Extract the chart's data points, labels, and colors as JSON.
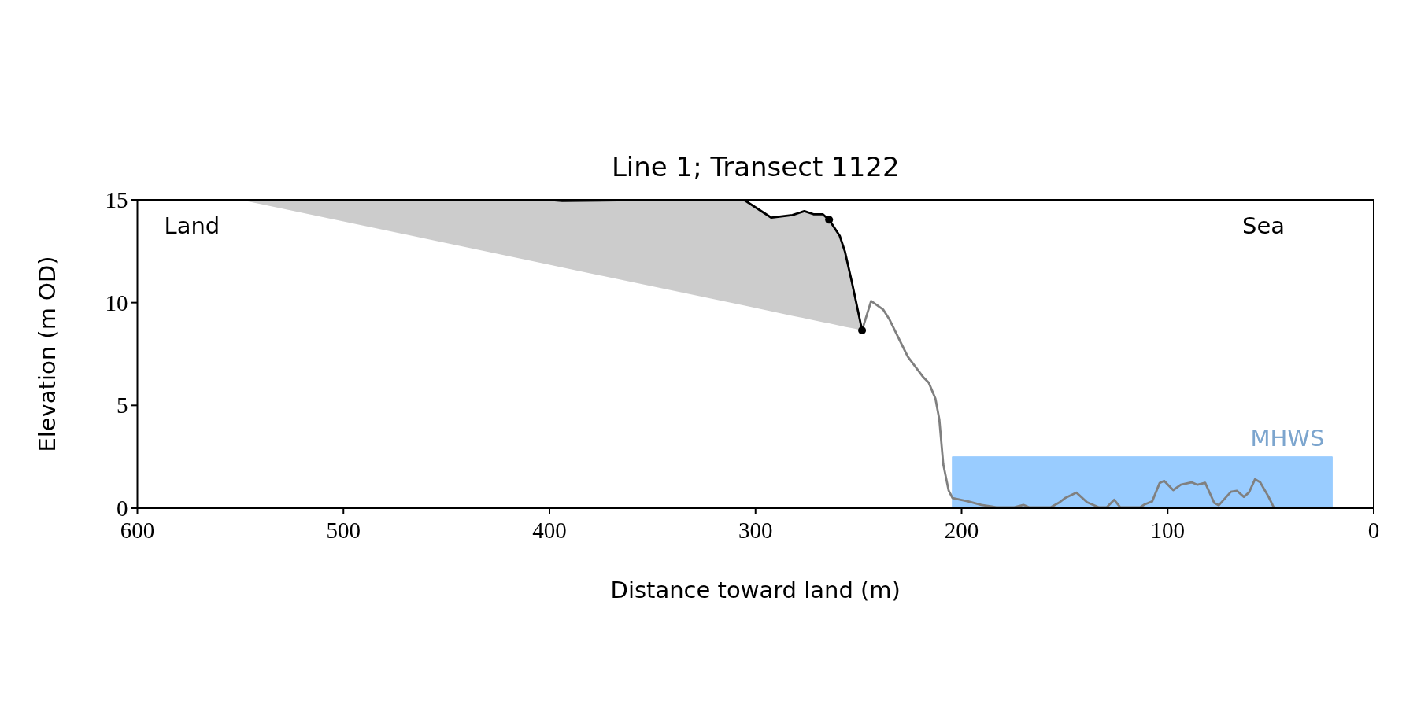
{
  "chart_data": {
    "type": "line",
    "title": "Line 1; Transect 1122",
    "xlabel": "Distance toward land (m)",
    "ylabel": "Elevation (m OD)",
    "xlim": [
      600,
      0
    ],
    "ylim": [
      0,
      15
    ],
    "xticks": [
      600,
      500,
      400,
      300,
      200,
      100,
      0
    ],
    "yticks": [
      0,
      5,
      10,
      15
    ],
    "grid": false,
    "annotations": [
      "Land",
      "Sea"
    ],
    "series": [
      {
        "color": "#000000",
        "x": [
          550,
          500,
          450,
          400,
          393.8,
          350,
          305.6,
          292.3,
          282.1,
          276.3,
          271.9,
          267.4,
          264.3,
          259.1,
          256.6,
          253.4,
          251.5,
          248.3
        ],
        "values": [
          15,
          15,
          15,
          15,
          14.95,
          15,
          15,
          14.13,
          14.26,
          14.45,
          14.3,
          14.3,
          14.03,
          13.24,
          12.48,
          11.07,
          10.18,
          8.65
        ],
        "lower": [
          15,
          13.95,
          12.9,
          11.84,
          11.71,
          10.79,
          9.86,
          9.58,
          9.36,
          9.24,
          9.15,
          9.05,
          8.99,
          8.88,
          8.82,
          8.76,
          8.72,
          8.65
        ],
        "upper": [
          15,
          15,
          15,
          15,
          14.95,
          15,
          15,
          14.13,
          14.26,
          14.45,
          14.3,
          14.3,
          14.03,
          13.24,
          12.48,
          11.07,
          10.18,
          8.65
        ]
      },
      {
        "color": "#808080",
        "x": [
          248.3,
          243.9,
          238.1,
          234.9,
          229.9,
          226.1,
          218.4,
          215.9,
          212.7,
          210.8,
          208.9,
          206.3,
          204.4,
          196.8,
          190.4,
          185.3,
          183.2,
          174.4,
          170,
          167.1,
          156.8,
          152.4,
          149.5,
          144.3,
          139.1,
          133.3,
          129.6,
          125.9,
          123,
          113.4,
          111.2,
          107.5,
          103.9,
          101.7,
          97.3,
          93.6,
          88.4,
          85.5,
          81.8,
          77.4,
          75.2,
          69.3,
          66.4,
          63,
          60.5,
          57.6,
          55.1,
          51,
          48.3
        ],
        "values": [
          8.65,
          10.08,
          9.67,
          9.16,
          8.14,
          7.37,
          6.35,
          6.1,
          5.33,
          4.31,
          2.14,
          0.87,
          0.49,
          0.33,
          0.16,
          0.08,
          0.04,
          0.04,
          0.16,
          0.04,
          0.04,
          0.29,
          0.51,
          0.76,
          0.29,
          0.04,
          0.04,
          0.41,
          0.04,
          0.04,
          0.18,
          0.33,
          1.22,
          1.33,
          0.88,
          1.14,
          1.26,
          1.14,
          1.24,
          0.26,
          0.14,
          0.8,
          0.85,
          0.55,
          0.77,
          1.41,
          1.26,
          0.55,
          0
        ]
      },
      {
        "type": "scatter",
        "color": "#000000",
        "marker": "circle",
        "x": [
          264.3,
          248.3
        ],
        "values": [
          14.03,
          8.65
        ]
      },
      {
        "type": "area",
        "name": "MHWS",
        "color": "#99ccff",
        "x": [
          204.5,
          20.1
        ],
        "values": [
          2.5,
          2.5
        ]
      }
    ]
  }
}
